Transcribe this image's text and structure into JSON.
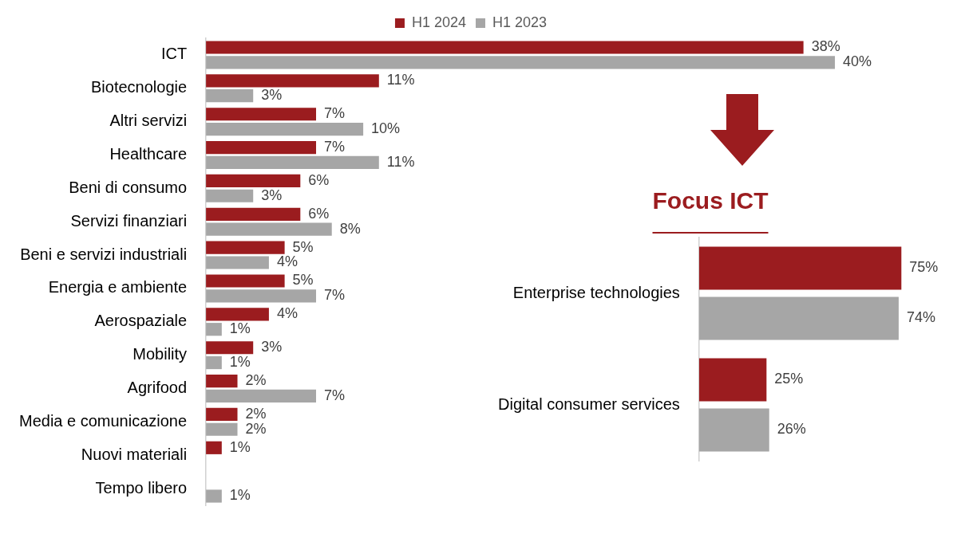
{
  "chart_data": [
    {
      "type": "bar",
      "orientation": "horizontal",
      "categories": [
        "ICT",
        "Biotecnologie",
        "Altri servizi",
        "Healthcare",
        "Beni di consumo",
        "Servizi finanziari",
        "Beni e servizi industriali",
        "Energia e ambiente",
        "Aerospaziale",
        "Mobility",
        "Agrifood",
        "Media e comunicazione",
        "Nuovi materiali",
        "Tempo libero"
      ],
      "series": [
        {
          "name": "H1 2024",
          "color": "#9b1c1f",
          "values": [
            38,
            11,
            7,
            7,
            6,
            6,
            5,
            5,
            4,
            3,
            2,
            2,
            1,
            null
          ],
          "value_labels": [
            "38%",
            "11%",
            "7%",
            "7%",
            "6%",
            "6%",
            "5%",
            "5%",
            "4%",
            "3%",
            "2%",
            "2%",
            "1%",
            null
          ]
        },
        {
          "name": "H1 2023",
          "color": "#a6a6a6",
          "values": [
            40,
            3,
            10,
            11,
            3,
            8,
            4,
            7,
            1,
            1,
            7,
            2,
            null,
            1
          ],
          "value_labels": [
            "40%",
            "3%",
            "10%",
            "11%",
            "3%",
            "8%",
            "4%",
            "7%",
            "1%",
            "1%",
            "7%",
            "2%",
            null,
            "1%"
          ]
        }
      ],
      "legend": "top"
    },
    {
      "type": "bar",
      "orientation": "horizontal",
      "title": "Focus ICT",
      "categories": [
        "Enterprise technologies",
        "Digital consumer services"
      ],
      "series": [
        {
          "color": "#9b1c1f",
          "values": [
            75,
            25
          ],
          "value_labels": [
            "75%",
            "25%"
          ]
        },
        {
          "color": "#a6a6a6",
          "values": [
            74,
            26
          ],
          "value_labels": [
            "74%",
            "26%"
          ]
        }
      ],
      "legend": false
    }
  ]
}
